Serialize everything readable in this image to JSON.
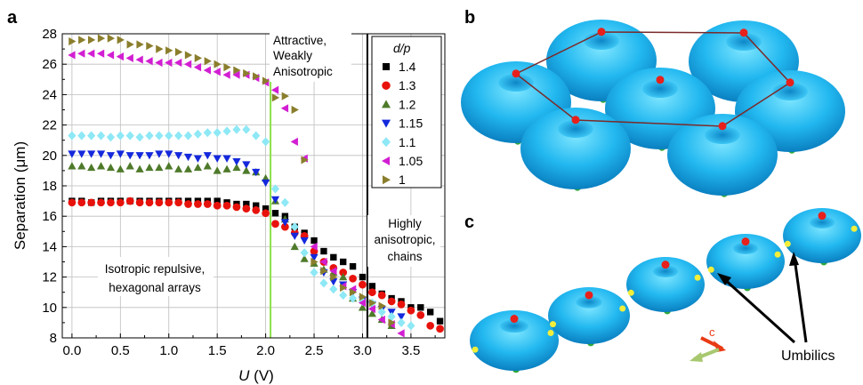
{
  "panels": {
    "a": "a",
    "b": "b",
    "c": "c"
  },
  "chart_data": {
    "type": "scatter",
    "xlabel": "U (V)",
    "xlabel_var": "U",
    "xlabel_unit": " (V)",
    "ylabel": "Separation (μm)",
    "xlim": [
      -0.1,
      3.85
    ],
    "ylim": [
      8,
      28
    ],
    "xticks": [
      "0.0",
      "0.5",
      "1.0",
      "1.5",
      "2.0",
      "2.5",
      "3.0",
      "3.5"
    ],
    "yticks": [
      "8",
      "10",
      "12",
      "14",
      "16",
      "18",
      "20",
      "22",
      "24",
      "26",
      "28"
    ],
    "grid": true,
    "legend_title": "d/p",
    "legend_position": "top-right",
    "vlines": [
      {
        "x": 2.05,
        "color": "#8de04a"
      },
      {
        "x": 3.05,
        "color": "#000000"
      }
    ],
    "annotations": [
      {
        "lines": [
          "Attractive,",
          "Weakly",
          "Anisotropic"
        ]
      },
      {
        "lines": [
          "Isotropic repulsive,",
          "hexagonal arrays"
        ]
      },
      {
        "lines": [
          "Highly",
          "anisotropic,",
          "chains"
        ]
      }
    ],
    "series": [
      {
        "name": "1.4",
        "marker": "square",
        "color": "#000000",
        "x": [
          0,
          0.1,
          0.2,
          0.3,
          0.4,
          0.5,
          0.6,
          0.7,
          0.8,
          0.9,
          1.0,
          1.1,
          1.2,
          1.3,
          1.4,
          1.5,
          1.6,
          1.7,
          1.8,
          1.9,
          2.0,
          2.1,
          2.2,
          2.3,
          2.4,
          2.5,
          2.6,
          2.7,
          2.8,
          2.9,
          3.0,
          3.1,
          3.2,
          3.3,
          3.4,
          3.5,
          3.6,
          3.7,
          3.8
        ],
        "y": [
          17.0,
          17.0,
          16.9,
          17.0,
          17.0,
          17.0,
          17.0,
          17.0,
          17.0,
          17.0,
          17.0,
          17.0,
          17.0,
          17.0,
          17.0,
          17.0,
          16.9,
          16.8,
          16.8,
          16.7,
          16.5,
          16.2,
          16.0,
          15.3,
          14.9,
          14.4,
          13.7,
          13.3,
          13.0,
          12.7,
          12.0,
          11.4,
          10.9,
          10.6,
          10.4,
          10.0,
          10.0,
          9.7,
          9.1
        ]
      },
      {
        "name": "1.3",
        "marker": "circle",
        "color": "#e8120c",
        "x": [
          0,
          0.1,
          0.2,
          0.3,
          0.4,
          0.5,
          0.6,
          0.7,
          0.8,
          0.9,
          1.0,
          1.1,
          1.2,
          1.3,
          1.4,
          1.5,
          1.6,
          1.7,
          1.8,
          1.9,
          2.0,
          2.1,
          2.2,
          2.3,
          2.4,
          2.5,
          2.6,
          2.7,
          2.8,
          2.9,
          3.0,
          3.1,
          3.2,
          3.3,
          3.4,
          3.5,
          3.6,
          3.7,
          3.8
        ],
        "y": [
          16.9,
          16.9,
          16.9,
          16.9,
          16.9,
          16.9,
          17.0,
          16.9,
          16.9,
          16.9,
          16.9,
          16.9,
          16.8,
          16.8,
          16.8,
          16.7,
          16.7,
          16.6,
          16.5,
          16.4,
          16.2,
          15.5,
          15.3,
          14.9,
          14.7,
          13.7,
          13.0,
          12.6,
          12.3,
          11.9,
          11.5,
          11.0,
          10.8,
          10.4,
          10.2,
          9.8,
          9.5,
          8.8,
          8.6
        ]
      },
      {
        "name": "1.2",
        "marker": "triangle-up",
        "color": "#4e7a2a",
        "x": [
          0,
          0.1,
          0.2,
          0.3,
          0.4,
          0.5,
          0.6,
          0.7,
          0.8,
          0.9,
          1.0,
          1.1,
          1.2,
          1.3,
          1.4,
          1.5,
          1.6,
          1.7,
          1.8,
          1.9,
          2.0,
          2.1,
          2.2,
          2.3,
          2.4,
          2.5,
          2.6,
          2.7,
          2.8,
          2.9,
          3.0,
          3.1,
          3.2,
          3.3
        ],
        "y": [
          19.3,
          19.3,
          19.2,
          19.3,
          19.2,
          19.1,
          19.3,
          19.1,
          19.2,
          19.2,
          19.3,
          19.1,
          19.1,
          19.2,
          19.3,
          19.0,
          19.1,
          19.2,
          19.0,
          18.9,
          18.5,
          17.0,
          15.8,
          14.0,
          13.2,
          12.9,
          12.5,
          12.3,
          12.0,
          10.6,
          10.0,
          9.6,
          9.2,
          8.8
        ]
      },
      {
        "name": "1.15",
        "marker": "triangle-down",
        "color": "#1428dc",
        "x": [
          0,
          0.1,
          0.2,
          0.3,
          0.4,
          0.5,
          0.6,
          0.7,
          0.8,
          0.9,
          1.0,
          1.1,
          1.2,
          1.3,
          1.4,
          1.5,
          1.6,
          1.7,
          1.8,
          1.9,
          2.0,
          2.1,
          2.2,
          2.3,
          2.4,
          2.5,
          2.6,
          2.7,
          2.8,
          2.9,
          3.0,
          3.1,
          3.2,
          3.3,
          3.4
        ],
        "y": [
          20.1,
          20.1,
          20.1,
          20.1,
          20.0,
          20.1,
          20.0,
          20.0,
          20.0,
          20.1,
          20.1,
          20.0,
          19.9,
          19.8,
          20.0,
          19.8,
          19.8,
          19.6,
          19.4,
          18.9,
          18.2,
          17.1,
          15.6,
          14.7,
          14.4,
          13.3,
          12.3,
          11.7,
          11.5,
          11.0,
          10.5,
          10.2,
          9.9,
          9.7,
          9.4
        ]
      },
      {
        "name": "1.1",
        "marker": "diamond",
        "color": "#8ee8f5",
        "x": [
          0,
          0.1,
          0.2,
          0.3,
          0.4,
          0.5,
          0.6,
          0.7,
          0.8,
          0.9,
          1.0,
          1.1,
          1.2,
          1.3,
          1.4,
          1.5,
          1.6,
          1.7,
          1.8,
          1.9,
          2.0,
          2.1,
          2.2,
          2.3,
          2.4,
          2.5,
          2.6,
          2.7,
          2.8,
          2.9,
          3.0,
          3.1,
          3.2,
          3.3,
          3.4,
          3.5
        ],
        "y": [
          21.3,
          21.3,
          21.3,
          21.3,
          21.2,
          21.3,
          21.3,
          21.2,
          21.3,
          21.3,
          21.3,
          21.3,
          21.3,
          21.4,
          21.5,
          21.5,
          21.6,
          21.7,
          21.7,
          21.3,
          20.9,
          17.8,
          16.9,
          15.3,
          13.6,
          12.3,
          11.6,
          11.2,
          10.8,
          10.6,
          10.4,
          10.3,
          9.7,
          9.4,
          9.0,
          8.8
        ]
      },
      {
        "name": "1.05",
        "marker": "triangle-left",
        "color": "#d21ed2",
        "x": [
          0,
          0.1,
          0.2,
          0.3,
          0.4,
          0.5,
          0.6,
          0.7,
          0.8,
          0.9,
          1.0,
          1.1,
          1.2,
          1.3,
          1.4,
          1.5,
          1.6,
          1.7,
          1.8,
          1.9,
          2.0,
          2.1,
          2.2,
          2.3,
          2.4,
          2.5,
          2.6,
          2.7,
          2.8,
          2.9,
          3.0,
          3.1,
          3.2,
          3.3,
          3.4
        ],
        "y": [
          26.6,
          26.7,
          26.7,
          26.7,
          26.6,
          26.5,
          26.4,
          26.3,
          26.2,
          26.1,
          26.1,
          26.1,
          26.0,
          25.8,
          25.6,
          25.5,
          25.3,
          25.3,
          25.3,
          25.1,
          24.8,
          24.3,
          23.1,
          20.9,
          19.8,
          14.0,
          13.0,
          12.4,
          11.4,
          11.2,
          10.3,
          9.9,
          9.2,
          8.9,
          8.3
        ]
      },
      {
        "name": "1",
        "marker": "triangle-right",
        "color": "#8a7e2c",
        "x": [
          0,
          0.1,
          0.2,
          0.3,
          0.4,
          0.5,
          0.6,
          0.7,
          0.8,
          0.9,
          1.0,
          1.1,
          1.2,
          1.3,
          1.4,
          1.5,
          1.6,
          1.7,
          1.8,
          1.9,
          2.0,
          2.1,
          2.2,
          2.3,
          2.4,
          2.5,
          2.6,
          2.7,
          2.8,
          2.9,
          3.0,
          3.1,
          3.2,
          3.3
        ],
        "y": [
          27.5,
          27.6,
          27.6,
          27.7,
          27.7,
          27.6,
          27.3,
          27.3,
          27.2,
          27.0,
          26.9,
          26.8,
          26.6,
          26.4,
          26.2,
          26.0,
          25.8,
          25.6,
          25.4,
          25.2,
          24.9,
          23.8,
          23.9,
          23.0,
          19.7,
          13.0,
          12.4,
          12.0,
          11.3,
          11.0,
          10.7,
          10.3,
          10.1,
          9.0
        ]
      }
    ]
  },
  "panel_c": {
    "arrow_label": "c",
    "annotation": "Umbilics"
  }
}
